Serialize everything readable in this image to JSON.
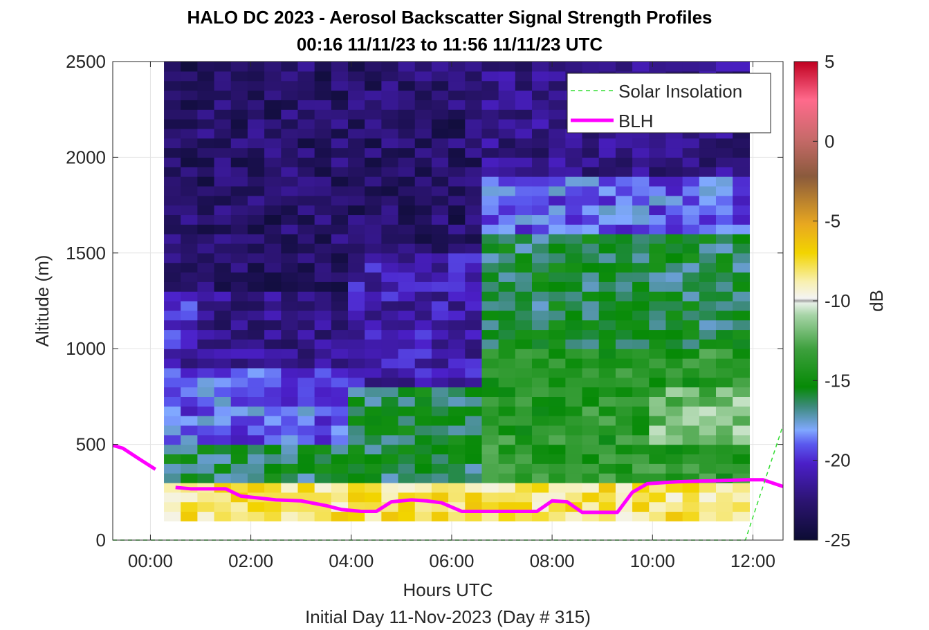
{
  "chart_data": {
    "type": "heatmap",
    "title": "HALO DC 2023 - Aerosol Backscatter Signal Strength Profiles",
    "subtitle": "00:16 11/11/23 to 11:56 11/11/23  UTC",
    "xlabel": "Hours UTC",
    "xlabel2": "Initial Day 11-Nov-2023 (Day # 315)",
    "ylabel": "Altitude (m)",
    "xlim": [
      -0.75,
      12.6
    ],
    "ylim": [
      0,
      2500
    ],
    "x_ticks": [
      0,
      2,
      4,
      6,
      8,
      10,
      12
    ],
    "x_tick_labels": [
      "00:00",
      "02:00",
      "04:00",
      "06:00",
      "08:00",
      "10:00",
      "12:00"
    ],
    "y_ticks": [
      0,
      500,
      1000,
      1500,
      2000,
      2500
    ],
    "y_tick_labels": [
      "0",
      "500",
      "1000",
      "1500",
      "2000",
      "2500"
    ],
    "grid": true,
    "colorbar": {
      "label": "dB",
      "range": [
        -25,
        5
      ],
      "ticks": [
        5,
        0,
        -5,
        -10,
        -15,
        -20,
        -25
      ],
      "tick_labels": [
        "5",
        "0",
        "-5",
        "-10",
        "-15",
        "-20",
        "-25"
      ]
    },
    "legend": {
      "placement": "top-right",
      "entries": [
        {
          "name": "Solar Insolation",
          "style": "dashed",
          "color": "#33dd33"
        },
        {
          "name": "BLH",
          "style": "solid",
          "color": "#ff00ff"
        }
      ]
    },
    "heatmap": {
      "x_start": 0.27,
      "x_end": 11.93,
      "y_start": 100,
      "y_end": 2500,
      "n_columns": 35,
      "n_rows": 48,
      "description_zones_db": [
        {
          "x": [
            0.27,
            4.0
          ],
          "y": [
            1300,
            2500
          ],
          "value_db": -23
        },
        {
          "x": [
            0.27,
            4.0
          ],
          "y": [
            900,
            1300
          ],
          "value_db": -22
        },
        {
          "x": [
            0.27,
            1.0
          ],
          "y": [
            1000,
            1300
          ],
          "value_db": -20
        },
        {
          "x": [
            0.27,
            4.0
          ],
          "y": [
            500,
            900
          ],
          "value_db": -19
        },
        {
          "x": [
            0.27,
            4.0
          ],
          "y": [
            300,
            500
          ],
          "value_db": -16
        },
        {
          "x": [
            4.0,
            6.5
          ],
          "y": [
            1500,
            2500
          ],
          "value_db": -23
        },
        {
          "x": [
            4.0,
            6.5
          ],
          "y": [
            800,
            1500
          ],
          "value_db": -21
        },
        {
          "x": [
            4.0,
            6.5
          ],
          "y": [
            300,
            800
          ],
          "value_db": -16
        },
        {
          "x": [
            6.5,
            12.0
          ],
          "y": [
            1900,
            2500
          ],
          "value_db": -22
        },
        {
          "x": [
            6.5,
            12.0
          ],
          "y": [
            1600,
            1900
          ],
          "value_db": -19
        },
        {
          "x": [
            6.5,
            12.0
          ],
          "y": [
            1000,
            1600
          ],
          "value_db": -16
        },
        {
          "x": [
            6.5,
            12.0
          ],
          "y": [
            300,
            1000
          ],
          "value_db": -14
        },
        {
          "x": [
            10.0,
            12.0
          ],
          "y": [
            500,
            800
          ],
          "value_db": -12
        },
        {
          "x": [
            0.27,
            12.0
          ],
          "y": [
            100,
            300
          ],
          "value_db": -8
        }
      ]
    },
    "series": [
      {
        "name": "BLH",
        "x": [
          -0.75,
          -0.55,
          -0.2,
          0.1
        ],
        "y": [
          495,
          480,
          420,
          370
        ]
      },
      {
        "name": "BLH",
        "x": [
          0.5,
          0.8,
          1.5,
          1.8,
          2.5,
          3.0,
          3.5,
          3.8,
          4.2,
          4.5,
          4.8,
          5.2,
          5.5,
          5.8,
          6.2,
          6.8,
          7.5,
          7.7,
          8.0,
          8.3,
          8.6,
          9.0,
          9.3,
          9.6,
          9.9,
          10.5,
          11.2,
          11.9,
          12.2,
          12.6
        ],
        "y": [
          275,
          268,
          268,
          230,
          210,
          205,
          180,
          160,
          150,
          150,
          200,
          210,
          205,
          195,
          150,
          150,
          150,
          150,
          205,
          200,
          145,
          145,
          145,
          250,
          295,
          305,
          310,
          315,
          315,
          280
        ]
      },
      {
        "name": "Solar Insolation",
        "x": [
          -0.75,
          11.85,
          12.6
        ],
        "y": [
          0,
          0,
          600
        ]
      }
    ]
  }
}
